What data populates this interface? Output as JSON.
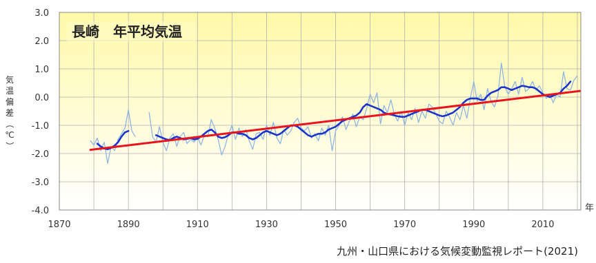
{
  "chart_data": {
    "type": "line",
    "title": "長崎　年平均気温",
    "ylabel": "気温偏差（℃）",
    "xlabel": "年",
    "source": "九州・山口県における気候変動監視レポート(2021)",
    "xlim": [
      1870,
      2021
    ],
    "ylim": [
      -4.0,
      3.0
    ],
    "x_ticks": [
      "1870",
      "1890",
      "1910",
      "1930",
      "1950",
      "1970",
      "1990",
      "2010"
    ],
    "y_ticks": [
      "3.0",
      "2.0",
      "1.0",
      "0.0",
      "-1.0",
      "-2.0",
      "-3.0",
      "-4.0"
    ],
    "grid": true,
    "colors": {
      "annual": "#8fb6e0",
      "moving_average": "#1a35c8",
      "trend": "#e8141e",
      "background_top": "#fff9a8",
      "background_bottom": "#ffffff",
      "grid": "#b0b0b0"
    },
    "series": [
      {
        "key": "annual",
        "points": [
          [
            1879,
            -1.55
          ],
          [
            1880,
            -1.7
          ],
          [
            1881,
            -1.45
          ],
          [
            1882,
            -1.9
          ],
          [
            1883,
            -1.6
          ],
          [
            1884,
            -2.35
          ],
          [
            1885,
            -1.75
          ],
          [
            1886,
            -1.9
          ],
          [
            1887,
            -1.5
          ],
          [
            1888,
            -1.3
          ],
          [
            1889,
            -1.1
          ],
          [
            1890,
            -0.45
          ],
          [
            1891,
            -1.2
          ],
          [
            1892,
            -1.4
          ],
          null,
          [
            1896,
            -0.55
          ],
          [
            1897,
            -1.4
          ],
          [
            1898,
            -1.6
          ],
          [
            1899,
            -1.05
          ],
          [
            1900,
            -1.6
          ],
          [
            1901,
            -1.9
          ],
          [
            1902,
            -1.45
          ],
          [
            1903,
            -1.3
          ],
          [
            1904,
            -1.75
          ],
          [
            1905,
            -1.4
          ],
          [
            1906,
            -1.25
          ],
          [
            1907,
            -1.65
          ],
          [
            1908,
            -1.5
          ],
          [
            1909,
            -1.6
          ],
          [
            1910,
            -1.4
          ],
          [
            1911,
            -1.7
          ],
          [
            1912,
            -1.35
          ],
          [
            1913,
            -1.4
          ],
          [
            1914,
            -0.8
          ],
          [
            1915,
            -1.1
          ],
          [
            1916,
            -1.5
          ],
          [
            1917,
            -2.05
          ],
          [
            1918,
            -1.75
          ],
          [
            1919,
            -1.3
          ],
          [
            1920,
            -1.0
          ],
          [
            1921,
            -1.5
          ],
          [
            1922,
            -1.1
          ],
          [
            1923,
            -1.4
          ],
          [
            1924,
            -1.15
          ],
          [
            1925,
            -1.55
          ],
          [
            1926,
            -1.85
          ],
          [
            1927,
            -1.3
          ],
          [
            1928,
            -1.25
          ],
          [
            1929,
            -1.5
          ],
          [
            1930,
            -1.0
          ],
          [
            1931,
            -1.35
          ],
          [
            1932,
            -0.9
          ],
          [
            1933,
            -1.45
          ],
          [
            1934,
            -1.65
          ],
          [
            1935,
            -1.15
          ],
          [
            1936,
            -1.35
          ],
          [
            1937,
            -1.2
          ],
          [
            1938,
            -0.9
          ],
          [
            1939,
            -0.75
          ],
          [
            1940,
            -1.1
          ],
          [
            1941,
            -1.2
          ],
          [
            1942,
            -1.05
          ],
          [
            1943,
            -1.45
          ],
          [
            1944,
            -1.3
          ],
          [
            1945,
            -1.55
          ],
          [
            1946,
            -1.1
          ],
          [
            1947,
            -1.35
          ],
          [
            1948,
            -1.0
          ],
          [
            1949,
            -1.9
          ],
          [
            1950,
            -1.2
          ],
          [
            1951,
            -1.0
          ],
          [
            1952,
            -0.7
          ],
          [
            1953,
            -1.15
          ],
          [
            1954,
            -0.85
          ],
          [
            1955,
            -0.6
          ],
          [
            1956,
            -1.05
          ],
          [
            1957,
            -0.7
          ],
          [
            1958,
            -0.8
          ],
          [
            1959,
            -0.4
          ],
          [
            1960,
            0.1
          ],
          [
            1961,
            -0.2
          ],
          [
            1962,
            0.15
          ],
          [
            1963,
            -0.95
          ],
          [
            1964,
            -0.3
          ],
          [
            1965,
            -0.55
          ],
          [
            1966,
            -0.1
          ],
          [
            1967,
            -0.6
          ],
          [
            1968,
            -0.85
          ],
          [
            1969,
            -0.5
          ],
          [
            1970,
            -1.0
          ],
          [
            1971,
            -0.55
          ],
          [
            1972,
            -0.8
          ],
          [
            1973,
            -0.4
          ],
          [
            1974,
            -0.9
          ],
          [
            1975,
            -0.5
          ],
          [
            1976,
            -0.75
          ],
          [
            1977,
            -0.25
          ],
          [
            1978,
            -0.35
          ],
          [
            1979,
            -0.6
          ],
          [
            1980,
            -0.85
          ],
          [
            1981,
            -0.95
          ],
          [
            1982,
            -0.5
          ],
          [
            1983,
            -0.7
          ],
          [
            1984,
            -1.0
          ],
          [
            1985,
            -0.55
          ],
          [
            1986,
            -0.8
          ],
          [
            1987,
            -0.3
          ],
          [
            1988,
            -0.75
          ],
          [
            1989,
            -0.05
          ],
          [
            1990,
            0.55
          ],
          [
            1991,
            -0.15
          ],
          [
            1992,
            0.1
          ],
          [
            1993,
            -0.45
          ],
          [
            1994,
            0.3
          ],
          [
            1995,
            -0.15
          ],
          [
            1996,
            -0.35
          ],
          [
            1997,
            0.05
          ],
          [
            1998,
            1.2
          ],
          [
            1999,
            0.35
          ],
          [
            2000,
            0.1
          ],
          [
            2001,
            0.3
          ],
          [
            2002,
            0.55
          ],
          [
            2003,
            0.1
          ],
          [
            2004,
            0.7
          ],
          [
            2005,
            0.2
          ],
          [
            2006,
            0.3
          ],
          [
            2007,
            0.55
          ],
          [
            2008,
            0.25
          ],
          [
            2009,
            0.4
          ],
          [
            2010,
            0.15
          ],
          [
            2011,
            -0.05
          ],
          [
            2012,
            0.1
          ],
          [
            2013,
            -0.2
          ],
          [
            2014,
            0.1
          ],
          [
            2015,
            0.0
          ],
          [
            2016,
            0.9
          ],
          [
            2017,
            0.3
          ],
          [
            2018,
            0.25
          ],
          [
            2019,
            0.6
          ],
          [
            2020,
            0.75
          ]
        ]
      },
      {
        "key": "moving_average",
        "points": [
          [
            1881,
            -1.65
          ],
          [
            1882,
            -1.75
          ],
          [
            1883,
            -1.82
          ],
          [
            1884,
            -1.85
          ],
          [
            1885,
            -1.8
          ],
          [
            1886,
            -1.72
          ],
          [
            1887,
            -1.6
          ],
          [
            1888,
            -1.4
          ],
          [
            1889,
            -1.25
          ],
          [
            1890,
            -1.2
          ],
          null,
          [
            1898,
            -1.35
          ],
          [
            1899,
            -1.4
          ],
          [
            1900,
            -1.45
          ],
          [
            1901,
            -1.5
          ],
          [
            1902,
            -1.52
          ],
          [
            1903,
            -1.45
          ],
          [
            1904,
            -1.4
          ],
          [
            1905,
            -1.45
          ],
          [
            1906,
            -1.5
          ],
          [
            1907,
            -1.48
          ],
          [
            1908,
            -1.45
          ],
          [
            1909,
            -1.5
          ],
          [
            1910,
            -1.48
          ],
          [
            1911,
            -1.4
          ],
          [
            1912,
            -1.3
          ],
          [
            1913,
            -1.2
          ],
          [
            1914,
            -1.15
          ],
          [
            1915,
            -1.25
          ],
          [
            1916,
            -1.4
          ],
          [
            1917,
            -1.45
          ],
          [
            1918,
            -1.42
          ],
          [
            1919,
            -1.35
          ],
          [
            1920,
            -1.25
          ],
          [
            1921,
            -1.25
          ],
          [
            1922,
            -1.3
          ],
          [
            1923,
            -1.3
          ],
          [
            1924,
            -1.35
          ],
          [
            1925,
            -1.45
          ],
          [
            1926,
            -1.5
          ],
          [
            1927,
            -1.45
          ],
          [
            1928,
            -1.35
          ],
          [
            1929,
            -1.25
          ],
          [
            1930,
            -1.2
          ],
          [
            1931,
            -1.25
          ],
          [
            1932,
            -1.3
          ],
          [
            1933,
            -1.35
          ],
          [
            1934,
            -1.3
          ],
          [
            1935,
            -1.2
          ],
          [
            1936,
            -1.1
          ],
          [
            1937,
            -1.0
          ],
          [
            1938,
            -1.0
          ],
          [
            1939,
            -1.05
          ],
          [
            1940,
            -1.15
          ],
          [
            1941,
            -1.25
          ],
          [
            1942,
            -1.35
          ],
          [
            1943,
            -1.4
          ],
          [
            1944,
            -1.35
          ],
          [
            1945,
            -1.3
          ],
          [
            1946,
            -1.3
          ],
          [
            1947,
            -1.25
          ],
          [
            1948,
            -1.15
          ],
          [
            1949,
            -1.1
          ],
          [
            1950,
            -1.05
          ],
          [
            1951,
            -0.95
          ],
          [
            1952,
            -0.85
          ],
          [
            1953,
            -0.8
          ],
          [
            1954,
            -0.75
          ],
          [
            1955,
            -0.7
          ],
          [
            1956,
            -0.65
          ],
          [
            1957,
            -0.55
          ],
          [
            1958,
            -0.35
          ],
          [
            1959,
            -0.25
          ],
          [
            1960,
            -0.3
          ],
          [
            1961,
            -0.35
          ],
          [
            1962,
            -0.4
          ],
          [
            1963,
            -0.45
          ],
          [
            1964,
            -0.55
          ],
          [
            1965,
            -0.6
          ],
          [
            1966,
            -0.62
          ],
          [
            1967,
            -0.65
          ],
          [
            1968,
            -0.68
          ],
          [
            1969,
            -0.7
          ],
          [
            1970,
            -0.7
          ],
          [
            1971,
            -0.65
          ],
          [
            1972,
            -0.6
          ],
          [
            1973,
            -0.55
          ],
          [
            1974,
            -0.5
          ],
          [
            1975,
            -0.45
          ],
          [
            1976,
            -0.45
          ],
          [
            1977,
            -0.5
          ],
          [
            1978,
            -0.55
          ],
          [
            1979,
            -0.6
          ],
          [
            1980,
            -0.65
          ],
          [
            1981,
            -0.68
          ],
          [
            1982,
            -0.65
          ],
          [
            1983,
            -0.6
          ],
          [
            1984,
            -0.55
          ],
          [
            1985,
            -0.45
          ],
          [
            1986,
            -0.35
          ],
          [
            1987,
            -0.2
          ],
          [
            1988,
            -0.1
          ],
          [
            1989,
            -0.05
          ],
          [
            1990,
            -0.05
          ],
          [
            1991,
            -0.05
          ],
          [
            1992,
            -0.1
          ],
          [
            1993,
            -0.1
          ],
          [
            1994,
            0.05
          ],
          [
            1995,
            0.15
          ],
          [
            1996,
            0.2
          ],
          [
            1997,
            0.25
          ],
          [
            1998,
            0.35
          ],
          [
            1999,
            0.35
          ],
          [
            2000,
            0.3
          ],
          [
            2001,
            0.25
          ],
          [
            2002,
            0.3
          ],
          [
            2003,
            0.35
          ],
          [
            2004,
            0.4
          ],
          [
            2005,
            0.38
          ],
          [
            2006,
            0.35
          ],
          [
            2007,
            0.35
          ],
          [
            2008,
            0.3
          ],
          [
            2009,
            0.2
          ],
          [
            2010,
            0.1
          ],
          [
            2011,
            0.05
          ],
          [
            2012,
            0.0
          ],
          [
            2013,
            0.05
          ],
          [
            2014,
            0.1
          ],
          [
            2015,
            0.15
          ],
          [
            2016,
            0.3
          ],
          [
            2017,
            0.4
          ],
          [
            2018,
            0.55
          ]
        ]
      },
      {
        "key": "trend",
        "points": [
          [
            1879,
            -1.87
          ],
          [
            2021,
            0.22
          ]
        ]
      }
    ]
  }
}
